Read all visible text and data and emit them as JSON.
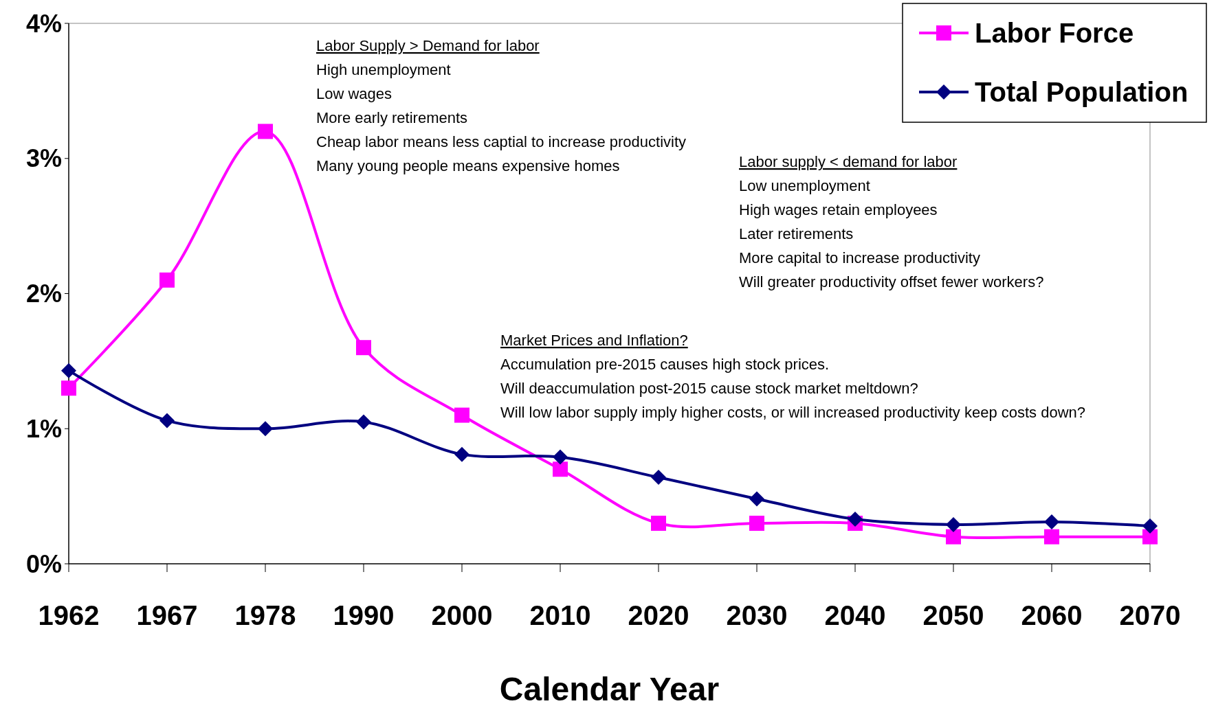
{
  "chart_data": {
    "type": "line",
    "xlabel": "Calendar Year",
    "categories": [
      "1962",
      "1967",
      "1978",
      "1990",
      "2000",
      "2010",
      "2020",
      "2030",
      "2040",
      "2050",
      "2060",
      "2070"
    ],
    "series": [
      {
        "name": "Labor Force",
        "color": "#ff00ff",
        "marker": "square",
        "values": [
          1.3,
          2.1,
          3.2,
          1.6,
          1.1,
          0.7,
          0.3,
          0.3,
          0.3,
          0.2,
          0.2,
          0.2
        ]
      },
      {
        "name": "Total Population",
        "color": "#000080",
        "marker": "diamond",
        "values": [
          1.43,
          1.06,
          1.0,
          1.05,
          0.81,
          0.79,
          0.64,
          0.48,
          0.33,
          0.29,
          0.31,
          0.28
        ]
      }
    ],
    "ylim": [
      0,
      4
    ],
    "yticks": [
      {
        "value": 0,
        "label": "0%"
      },
      {
        "value": 1,
        "label": "1%"
      },
      {
        "value": 2,
        "label": "2%"
      },
      {
        "value": 3,
        "label": "3%"
      },
      {
        "value": 4,
        "label": "4%"
      }
    ],
    "legend": "top right",
    "grid": false,
    "line_style": "solid",
    "annotations": [
      "Labor Supply > Demand for labor\nHigh unemployment\nLow wages\nMore early retirements\nCheap labor means less captial to increase productivity\nMany young people means expensive homes",
      "Labor supply < demand for labor\nLow unemployment\nHigh wages retain employees\nLater retirements\nMore capital to increase productivity\nWill greater productivity offset fewer workers?",
      "Market Prices and Inflation?\nAccumulation pre-2015 causes high stock prices.\nWill deaccumulation post-2015 cause stock market meltdown?\nWill low labor supply imply higher costs, or will increased productivity keep costs down?"
    ]
  }
}
